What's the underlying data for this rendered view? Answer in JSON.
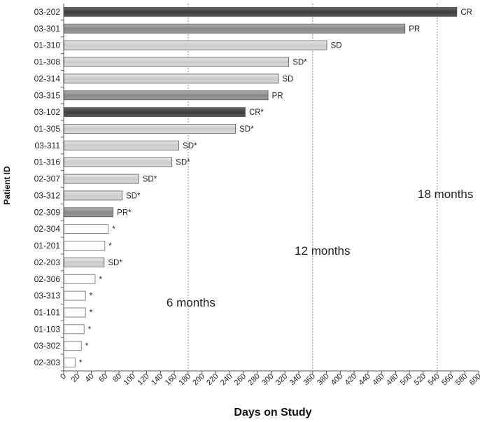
{
  "chart_data": {
    "type": "bar",
    "orientation": "horizontal",
    "xlabel": "Days on Study",
    "ylabel": "Patient ID",
    "xlim": [
      0,
      600
    ],
    "xtick_step": 20,
    "categories": [
      "03-202",
      "03-301",
      "01-310",
      "01-308",
      "02-314",
      "03-315",
      "03-102",
      "01-305",
      "03-311",
      "01-316",
      "02-307",
      "03-312",
      "02-309",
      "02-304",
      "01-201",
      "02-203",
      "02-306",
      "03-313",
      "01-101",
      "01-103",
      "03-302",
      "02-303"
    ],
    "values": [
      568,
      493,
      380,
      325,
      310,
      295,
      262,
      248,
      166,
      156,
      108,
      84,
      71,
      64,
      59,
      58,
      45,
      31,
      31,
      29,
      25,
      16
    ],
    "labels": [
      "CR",
      "PR",
      "SD",
      "SD*",
      "SD",
      "PR",
      "CR*",
      "SD*",
      "SD*",
      "SD*",
      "SD*",
      "SD*",
      "PR*",
      "*",
      "*",
      "SD*",
      "*",
      "*",
      "*",
      "*",
      "*",
      "*"
    ],
    "styles": [
      "dark",
      "mid",
      "light",
      "light",
      "light",
      "mid",
      "dark",
      "light",
      "light",
      "light",
      "light",
      "light",
      "mid",
      "empty",
      "empty",
      "light",
      "empty",
      "empty",
      "empty",
      "empty",
      "empty",
      "empty"
    ],
    "colors": {
      "dark": "#4a4a4a",
      "mid": "#8f8f8f",
      "light": "#d3d3d3",
      "empty": "#ffffff"
    },
    "reference_lines": [
      {
        "x": 180,
        "label": "6 months"
      },
      {
        "x": 360,
        "label": "12 months"
      },
      {
        "x": 540,
        "label": "18 months"
      }
    ]
  }
}
